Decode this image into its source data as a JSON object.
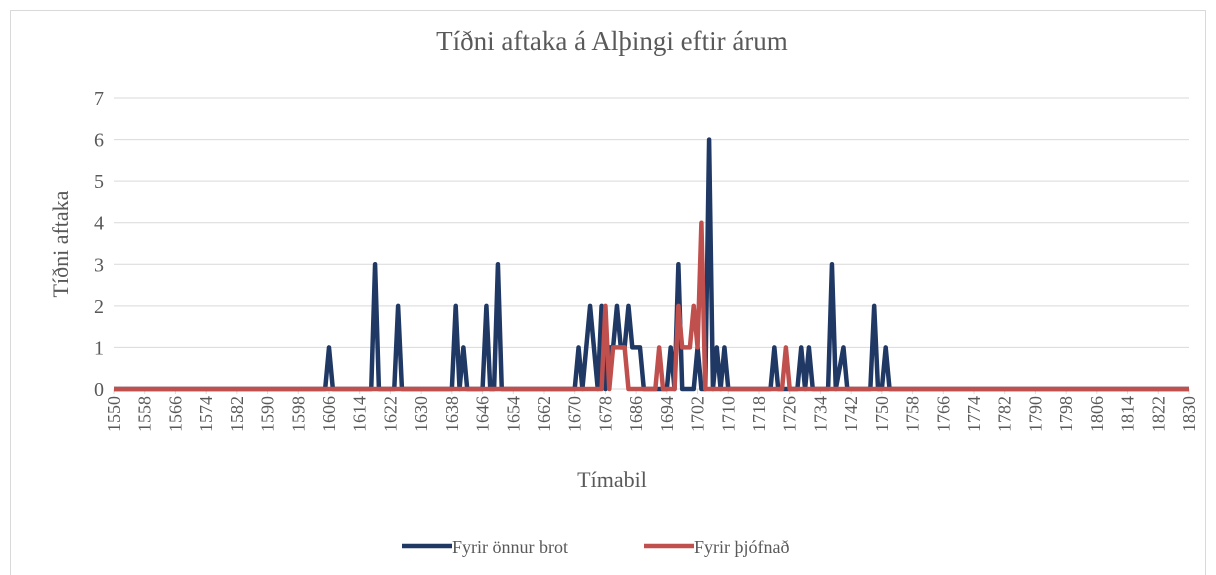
{
  "chart_data": {
    "type": "line",
    "title": "Tíðni aftaka á Alþingi eftir árum",
    "x_label": "Tímabil",
    "y_label": "Tíðni aftaka",
    "x": [
      1550,
      1605,
      1606,
      1607,
      1617,
      1618,
      1619,
      1623,
      1624,
      1625,
      1638,
      1639,
      1640,
      1641,
      1642,
      1646,
      1647,
      1648,
      1649,
      1650,
      1651,
      1670,
      1671,
      1672,
      1674,
      1676,
      1677,
      1678,
      1679,
      1680,
      1681,
      1682,
      1683,
      1684,
      1685,
      1686,
      1687,
      1688,
      1691,
      1692,
      1693,
      1694,
      1695,
      1696,
      1697,
      1698,
      1699,
      1700,
      1701,
      1702,
      1703,
      1704,
      1705,
      1706,
      1707,
      1708,
      1709,
      1710,
      1721,
      1722,
      1723,
      1724,
      1725,
      1726,
      1728,
      1729,
      1730,
      1731,
      1732,
      1736,
      1737,
      1738,
      1740,
      1741,
      1747,
      1748,
      1749,
      1750,
      1751,
      1752,
      1830
    ],
    "series": [
      {
        "name": "Fyrir önnur brot",
        "color": "#1f3864",
        "values": [
          0,
          0,
          1,
          0,
          0,
          3,
          0,
          0,
          2,
          0,
          0,
          2,
          0,
          1,
          0,
          0,
          2,
          0,
          0,
          3,
          0,
          0,
          1,
          0,
          2,
          0,
          2,
          0,
          1,
          1,
          2,
          1,
          1,
          2,
          1,
          1,
          1,
          0,
          0,
          0,
          0,
          0,
          1,
          0,
          3,
          0,
          0,
          0,
          0,
          1,
          0,
          0,
          6,
          0,
          1,
          0,
          1,
          0,
          0,
          1,
          0,
          0,
          0,
          0,
          0,
          1,
          0,
          1,
          0,
          0,
          3,
          0,
          1,
          0,
          0,
          2,
          0,
          0,
          1,
          0,
          0
        ]
      },
      {
        "name": "Fyrir þjófnað",
        "color": "#c0504d",
        "values": [
          0,
          0,
          0,
          0,
          0,
          0,
          0,
          0,
          0,
          0,
          0,
          0,
          0,
          0,
          0,
          0,
          0,
          0,
          0,
          0,
          0,
          0,
          0,
          0,
          0,
          0,
          0,
          2,
          0,
          1,
          1,
          1,
          1,
          0,
          0,
          0,
          0,
          0,
          0,
          1,
          0,
          0,
          0,
          0,
          2,
          1,
          1,
          1,
          2,
          1,
          4,
          0,
          0,
          0,
          0,
          0,
          0,
          0,
          0,
          0,
          0,
          0,
          1,
          0,
          0,
          0,
          0,
          0,
          0,
          0,
          0,
          0,
          0,
          0,
          0,
          0,
          0,
          0,
          0,
          0,
          0
        ]
      }
    ],
    "xlim": [
      1550,
      1830
    ],
    "xticks": [
      1550,
      1558,
      1566,
      1574,
      1582,
      1590,
      1598,
      1606,
      1614,
      1622,
      1630,
      1638,
      1646,
      1654,
      1662,
      1670,
      1678,
      1686,
      1694,
      1702,
      1710,
      1718,
      1726,
      1734,
      1742,
      1750,
      1758,
      1766,
      1774,
      1782,
      1790,
      1798,
      1806,
      1814,
      1822,
      1830
    ],
    "ylim": [
      0,
      7
    ],
    "yticks": [
      0,
      1,
      2,
      3,
      4,
      5,
      6,
      7
    ],
    "grid": true,
    "legend": "bottom"
  }
}
